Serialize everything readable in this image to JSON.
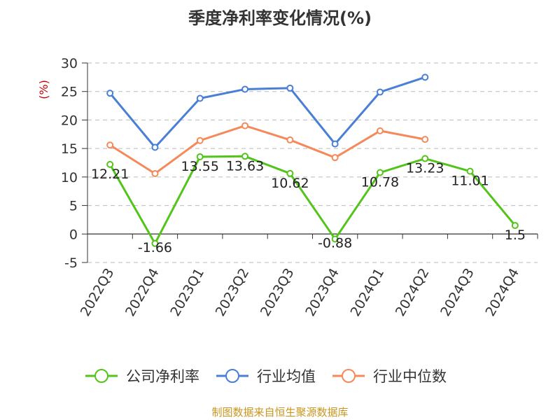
{
  "chart_data": {
    "type": "line",
    "title": "季度净利率变化情况(%)",
    "ylabel": "(%)",
    "categories": [
      "2022Q3",
      "2022Q4",
      "2023Q1",
      "2023Q2",
      "2023Q3",
      "2023Q4",
      "2024Q1",
      "2024Q2",
      "2024Q3",
      "2024Q4"
    ],
    "ylim": [
      -5,
      30
    ],
    "yticks": [
      -5,
      0,
      5,
      10,
      15,
      20,
      25,
      30
    ],
    "grid": true,
    "legend_position": "bottom",
    "series": [
      {
        "name": "公司净利率",
        "color": "#52c41a",
        "values": [
          12.21,
          -1.66,
          13.55,
          13.63,
          10.62,
          -0.88,
          10.78,
          13.23,
          11.01,
          1.5
        ],
        "labels": [
          "12.21",
          "-1.66",
          "13.55",
          "13.63",
          "10.62",
          "-0.88",
          "10.78",
          "13.23",
          "11.01",
          "1.5"
        ]
      },
      {
        "name": "行业均值",
        "color": "#4a7fd6",
        "values": [
          24.7,
          15.2,
          23.8,
          25.4,
          25.6,
          15.8,
          24.9,
          27.5,
          null,
          null
        ]
      },
      {
        "name": "行业中位数",
        "color": "#f5895a",
        "values": [
          15.6,
          10.6,
          16.4,
          19.0,
          16.5,
          13.4,
          18.1,
          16.6,
          null,
          null
        ]
      }
    ]
  },
  "footer": {
    "source": "制图数据来自恒生聚源数据库"
  }
}
